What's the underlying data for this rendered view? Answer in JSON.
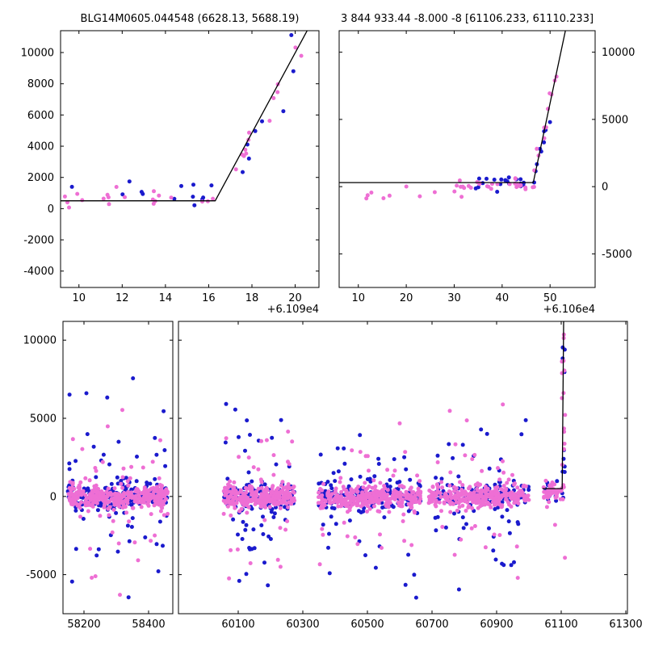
{
  "figure": {
    "background": "#ffffff",
    "line_color": "#000000",
    "point_colors": {
      "blue": "#1a1acd",
      "pink": "#ee6fd4"
    }
  },
  "chart_data": [
    {
      "id": "top_left",
      "type": "scatter",
      "title": "BLG14M0605.044548 (6628.13, 5688.19)",
      "x_offset_label": "+6.109e4",
      "xlim": [
        9.15,
        21.1
      ],
      "ylim": [
        -5050,
        11400
      ],
      "xticks": [
        10,
        12,
        14,
        16,
        18,
        20
      ],
      "yticks": [
        -4000,
        -2000,
        0,
        2000,
        4000,
        6000,
        8000,
        10000
      ],
      "ytick_side": "left",
      "grid": false,
      "model_line": [
        [
          9.15,
          500
        ],
        [
          16.3,
          500
        ],
        [
          21.1,
          12800
        ]
      ],
      "clusters": [
        {
          "series": "blue",
          "kind": "flat",
          "n": 13,
          "x": [
            9.5,
            16.15
          ],
          "y_mean": 950,
          "y_sigma": 430
        },
        {
          "series": "pink",
          "kind": "flat",
          "n": 20,
          "x": [
            9.35,
            16.2
          ],
          "y_mean": 850,
          "y_sigma": 360
        },
        {
          "series": "blue",
          "kind": "trend",
          "n": 8,
          "x": [
            17.5,
            20.15
          ],
          "y_sigma": 900,
          "y_bias": -400
        },
        {
          "series": "pink",
          "kind": "trend",
          "n": 13,
          "x": [
            17.2,
            20.35
          ],
          "y_sigma": 650,
          "y_bias": -250
        }
      ]
    },
    {
      "id": "top_right",
      "type": "scatter",
      "title": "3 844 933.44 -8.000 -8 [61106.233, 61110.233]",
      "x_offset_label": "+6.106e4",
      "xlim": [
        6,
        59.4
      ],
      "ylim": [
        -7500,
        11600
      ],
      "xticks": [
        10,
        20,
        30,
        40,
        50
      ],
      "yticks": [
        -5000,
        0,
        5000,
        10000
      ],
      "ytick_side": "right",
      "grid": false,
      "model_line": [
        [
          6,
          300
        ],
        [
          46.5,
          300
        ],
        [
          53.2,
          11600
        ]
      ],
      "clusters": [
        {
          "series": "pink",
          "kind": "flat",
          "n": 11,
          "x": [
            10.2,
            32
          ],
          "y_mean": -420,
          "y_sigma": 300
        },
        {
          "series": "blue",
          "kind": "flat",
          "n": 22,
          "x": [
            34.5,
            47.2
          ],
          "y_mean": 320,
          "y_sigma": 260
        },
        {
          "series": "pink",
          "kind": "flat",
          "n": 26,
          "x": [
            31,
            46.8
          ],
          "y_mean": 120,
          "y_sigma": 240
        },
        {
          "series": "blue",
          "kind": "trend",
          "n": 8,
          "x": [
            46.8,
            51.2
          ],
          "y_sigma": 600,
          "y_bias": -150
        },
        {
          "series": "pink",
          "kind": "trend",
          "n": 12,
          "x": [
            46.6,
            51.6
          ],
          "y_sigma": 520,
          "y_bias": 0
        }
      ]
    },
    {
      "id": "bottom_left",
      "type": "scatter",
      "title": "",
      "x_offset_label": "",
      "xlim": [
        58135,
        58475
      ],
      "ylim": [
        -7500,
        11200
      ],
      "xticks": [
        58200,
        58400
      ],
      "yticks": [
        -5000,
        0,
        5000,
        10000
      ],
      "ytick_side": "left",
      "grid": false,
      "clusters": [
        {
          "series": "blue",
          "kind": "flat",
          "n": 170,
          "x": [
            58150,
            58460
          ],
          "y_mean": 0,
          "y_sigma": 430
        },
        {
          "series": "blue",
          "kind": "flat",
          "n": 56,
          "x": [
            58152,
            58458
          ],
          "y_mean": -300,
          "y_sigma": 3100
        },
        {
          "series": "pink",
          "kind": "flat",
          "n": 330,
          "x": [
            58150,
            58460
          ],
          "y_mean": -30,
          "y_sigma": 380
        },
        {
          "series": "pink",
          "kind": "flat",
          "n": 42,
          "x": [
            58152,
            58458
          ],
          "y_mean": 0,
          "y_sigma": 2500
        }
      ]
    },
    {
      "id": "bottom_right",
      "type": "scatter",
      "title": "",
      "x_offset_label": "",
      "xlim": [
        59915,
        61305
      ],
      "ylim": [
        -7500,
        11200
      ],
      "xticks": [
        60100,
        60300,
        60500,
        60700,
        60900,
        61100,
        61300
      ],
      "yticks": [
        -5000,
        0,
        5000,
        10000
      ],
      "ytick_side": "none",
      "grid": false,
      "model_line": [
        [
          61042,
          500
        ],
        [
          61103,
          500
        ],
        [
          61107.5,
          11200
        ]
      ],
      "clusters": [
        {
          "series": "blue",
          "kind": "flat",
          "n": 130,
          "x": [
            60055,
            60275
          ],
          "y_mean": 0,
          "y_sigma": 430
        },
        {
          "series": "blue",
          "kind": "flat",
          "n": 42,
          "x": [
            60060,
            60270
          ],
          "y_mean": -200,
          "y_sigma": 3000
        },
        {
          "series": "pink",
          "kind": "flat",
          "n": 250,
          "x": [
            60055,
            60275
          ],
          "y_mean": -30,
          "y_sigma": 380
        },
        {
          "series": "pink",
          "kind": "flat",
          "n": 34,
          "x": [
            60060,
            60270
          ],
          "y_mean": 0,
          "y_sigma": 2500
        },
        {
          "series": "blue",
          "kind": "flat",
          "n": 150,
          "x": [
            60345,
            60665
          ],
          "y_mean": 0,
          "y_sigma": 430
        },
        {
          "series": "blue",
          "kind": "flat",
          "n": 50,
          "x": [
            60350,
            60660
          ],
          "y_mean": -200,
          "y_sigma": 3100
        },
        {
          "series": "pink",
          "kind": "flat",
          "n": 290,
          "x": [
            60345,
            60665
          ],
          "y_mean": -30,
          "y_sigma": 380
        },
        {
          "series": "pink",
          "kind": "flat",
          "n": 42,
          "x": [
            60350,
            60660
          ],
          "y_mean": 0,
          "y_sigma": 2600
        },
        {
          "series": "blue",
          "kind": "flat",
          "n": 140,
          "x": [
            60690,
            61000
          ],
          "y_mean": 50,
          "y_sigma": 430
        },
        {
          "series": "blue",
          "kind": "flat",
          "n": 46,
          "x": [
            60695,
            60995
          ],
          "y_mean": -200,
          "y_sigma": 3000
        },
        {
          "series": "pink",
          "kind": "flat",
          "n": 270,
          "x": [
            60690,
            61000
          ],
          "y_mean": 0,
          "y_sigma": 400
        },
        {
          "series": "pink",
          "kind": "flat",
          "n": 38,
          "x": [
            60695,
            60995
          ],
          "y_mean": 0,
          "y_sigma": 2500
        },
        {
          "series": "blue",
          "kind": "flat",
          "n": 16,
          "x": [
            61050,
            61108
          ],
          "y_mean": 300,
          "y_sigma": 350
        },
        {
          "series": "pink",
          "kind": "flat",
          "n": 46,
          "x": [
            61045,
            61110
          ],
          "y_mean": 260,
          "y_sigma": 320
        },
        {
          "series": "pink",
          "kind": "flat",
          "n": 5,
          "x": [
            61045,
            61112
          ],
          "y_mean": -500,
          "y_sigma": 1500
        },
        {
          "series": "blue",
          "kind": "column",
          "n": 9,
          "x": [
            61103,
            61111
          ],
          "y_range": [
            800,
            9800
          ]
        },
        {
          "series": "pink",
          "kind": "column",
          "n": 14,
          "x": [
            61102,
            61112
          ],
          "y_range": [
            600,
            10400
          ]
        }
      ]
    }
  ]
}
